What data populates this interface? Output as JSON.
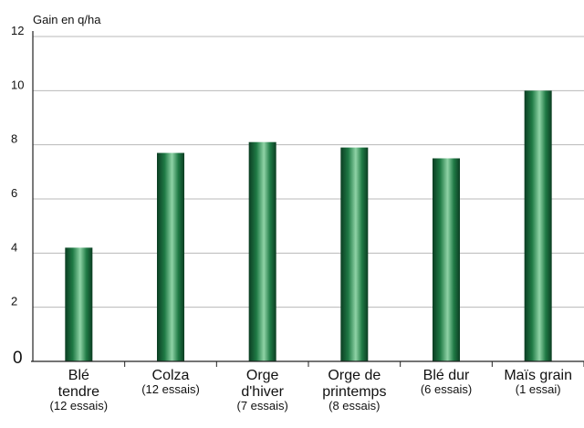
{
  "chart_data": {
    "type": "bar",
    "ylabel": "Gain en q/ha",
    "ylim": [
      0,
      12
    ],
    "yticks": [
      "0",
      "2",
      "4",
      "6",
      "8",
      "10",
      "12"
    ],
    "grid": true,
    "categories": [
      {
        "lines": [
          "Blé",
          "tendre"
        ],
        "sub": "(12 essais)"
      },
      {
        "lines": [
          "Colza"
        ],
        "sub": "(12 essais)"
      },
      {
        "lines": [
          "Orge",
          "d'hiver"
        ],
        "sub": "(7 essais)"
      },
      {
        "lines": [
          "Orge de",
          "printemps"
        ],
        "sub": "(8 essais)"
      },
      {
        "lines": [
          "Blé dur"
        ],
        "sub": "(6 essais)"
      },
      {
        "lines": [
          "Maïs grain"
        ],
        "sub": "(1 essai)"
      }
    ],
    "values": [
      4.2,
      7.7,
      8.1,
      7.9,
      7.5,
      10.0
    ],
    "colors": {
      "bar_dark": "#0b3d22",
      "bar_mid": "#1f7a45",
      "bar_light": "#8fd3a6",
      "grid": "#b8b8b8",
      "axis": "#222222"
    }
  }
}
